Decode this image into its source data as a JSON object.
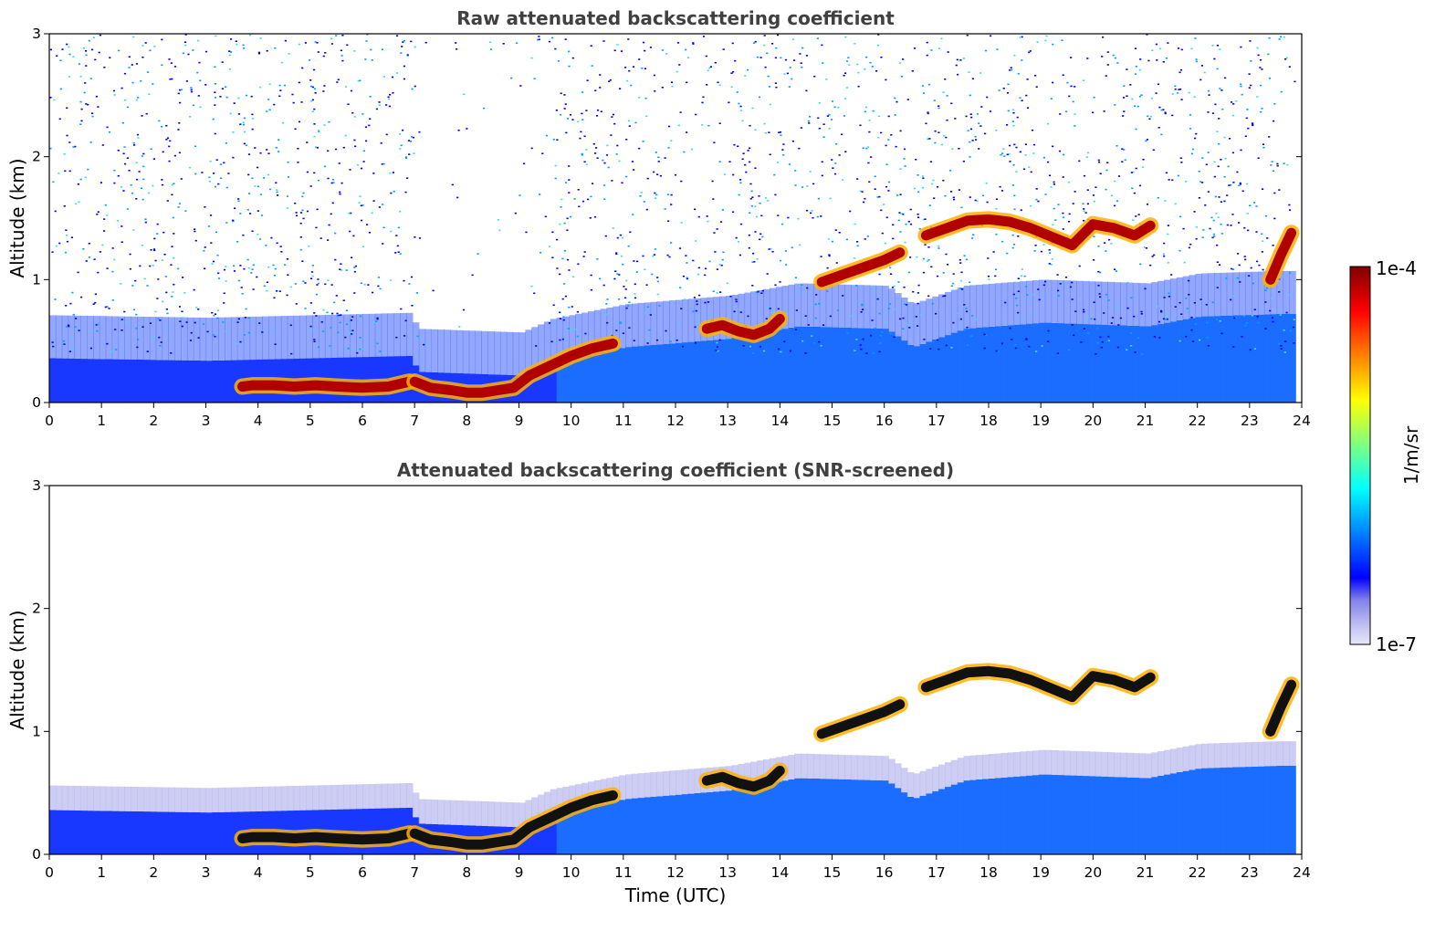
{
  "chart_data": [
    {
      "type": "heatmap",
      "title": "Raw attenuated backscattering coefficient",
      "xlabel": "",
      "ylabel": "Altitude (km)",
      "xlim": [
        0,
        24
      ],
      "ylim": [
        0,
        3
      ],
      "xticks": [
        0,
        1,
        2,
        3,
        4,
        5,
        6,
        7,
        8,
        9,
        10,
        11,
        12,
        13,
        14,
        15,
        16,
        17,
        18,
        19,
        20,
        21,
        22,
        23,
        24
      ],
      "yticks": [
        0,
        1,
        2,
        3
      ],
      "screened": false,
      "noise_level_per_hour": [
        [
          0,
          0.36
        ],
        [
          3,
          0.34
        ],
        [
          6.9,
          0.38
        ],
        [
          7,
          0.25
        ],
        [
          9,
          0.22
        ],
        [
          9.6,
          0.33
        ],
        [
          11,
          0.45
        ],
        [
          13,
          0.52
        ],
        [
          14.3,
          0.62
        ],
        [
          16,
          0.6
        ],
        [
          16.5,
          0.45
        ],
        [
          17.5,
          0.6
        ],
        [
          19,
          0.65
        ],
        [
          21,
          0.62
        ],
        [
          22,
          0.7
        ],
        [
          23.5,
          0.72
        ],
        [
          23.85,
          0.72
        ]
      ],
      "cloud_layer": [
        {
          "time": [
            3.7,
            3.9,
            4.3,
            4.7,
            5.1,
            5.5,
            6,
            6.5,
            6.9
          ],
          "altitude": [
            0.13,
            0.14,
            0.14,
            0.13,
            0.14,
            0.13,
            0.12,
            0.13,
            0.17
          ]
        },
        {
          "time": [
            7.0,
            7.3,
            7.7,
            8.0,
            8.3,
            8.6,
            8.9,
            9.2,
            9.6,
            10.0,
            10.4,
            10.8
          ],
          "altitude": [
            0.17,
            0.12,
            0.1,
            0.08,
            0.08,
            0.1,
            0.12,
            0.22,
            0.3,
            0.38,
            0.44,
            0.48
          ]
        },
        {
          "time": [
            12.6,
            12.9,
            13.2,
            13.5,
            13.8,
            14.0
          ],
          "altitude": [
            0.6,
            0.63,
            0.58,
            0.55,
            0.6,
            0.68
          ]
        },
        {
          "time": [
            14.8,
            15.2,
            15.6,
            16.0,
            16.3
          ],
          "altitude": [
            0.98,
            1.04,
            1.1,
            1.16,
            1.22
          ]
        },
        {
          "time": [
            16.8,
            17.2,
            17.6,
            18.0,
            18.4,
            18.8,
            19.2,
            19.6,
            20.0,
            20.4,
            20.8,
            21.1
          ],
          "altitude": [
            1.36,
            1.42,
            1.48,
            1.49,
            1.47,
            1.42,
            1.35,
            1.28,
            1.45,
            1.42,
            1.36,
            1.44
          ]
        },
        {
          "time": [
            23.4,
            23.6,
            23.8
          ],
          "altitude": [
            1.0,
            1.2,
            1.38
          ]
        }
      ]
    },
    {
      "type": "heatmap",
      "title": "Attenuated backscattering coefficient (SNR-screened)",
      "xlabel": "Time (UTC)",
      "ylabel": "Altitude (km)",
      "xlim": [
        0,
        24
      ],
      "ylim": [
        0,
        3
      ],
      "xticks": [
        0,
        1,
        2,
        3,
        4,
        5,
        6,
        7,
        8,
        9,
        10,
        11,
        12,
        13,
        14,
        15,
        16,
        17,
        18,
        19,
        20,
        21,
        22,
        23,
        24
      ],
      "yticks": [
        0,
        1,
        2,
        3
      ],
      "screened": true,
      "noise_level_per_hour": [
        [
          0,
          0.36
        ],
        [
          3,
          0.34
        ],
        [
          6.9,
          0.38
        ],
        [
          7,
          0.25
        ],
        [
          9,
          0.22
        ],
        [
          9.6,
          0.33
        ],
        [
          11,
          0.45
        ],
        [
          13,
          0.52
        ],
        [
          14.3,
          0.62
        ],
        [
          16,
          0.6
        ],
        [
          16.5,
          0.45
        ],
        [
          17.5,
          0.6
        ],
        [
          19,
          0.65
        ],
        [
          21,
          0.62
        ],
        [
          22,
          0.7
        ],
        [
          23.5,
          0.72
        ],
        [
          23.85,
          0.72
        ]
      ],
      "cloud_layer": [
        {
          "time": [
            3.7,
            3.9,
            4.3,
            4.7,
            5.1,
            5.5,
            6,
            6.5,
            6.9
          ],
          "altitude": [
            0.13,
            0.14,
            0.14,
            0.13,
            0.14,
            0.13,
            0.12,
            0.13,
            0.17
          ]
        },
        {
          "time": [
            7.0,
            7.3,
            7.7,
            8.0,
            8.3,
            8.6,
            8.9,
            9.2,
            9.6,
            10.0,
            10.4,
            10.8
          ],
          "altitude": [
            0.17,
            0.12,
            0.1,
            0.08,
            0.08,
            0.1,
            0.12,
            0.22,
            0.3,
            0.38,
            0.44,
            0.48
          ]
        },
        {
          "time": [
            12.6,
            12.9,
            13.2,
            13.5,
            13.8,
            14.0
          ],
          "altitude": [
            0.6,
            0.63,
            0.58,
            0.55,
            0.6,
            0.68
          ]
        },
        {
          "time": [
            14.8,
            15.2,
            15.6,
            16.0,
            16.3
          ],
          "altitude": [
            0.98,
            1.04,
            1.1,
            1.16,
            1.22
          ]
        },
        {
          "time": [
            16.8,
            17.2,
            17.6,
            18.0,
            18.4,
            18.8,
            19.2,
            19.6,
            20.0,
            20.4,
            20.8,
            21.1
          ],
          "altitude": [
            1.36,
            1.42,
            1.48,
            1.49,
            1.47,
            1.42,
            1.35,
            1.28,
            1.45,
            1.42,
            1.36,
            1.44
          ]
        },
        {
          "time": [
            23.4,
            23.6,
            23.8
          ],
          "altitude": [
            1.0,
            1.2,
            1.38
          ]
        }
      ]
    }
  ],
  "colorbar": {
    "label": "1/m/sr",
    "max_label": "1e-4",
    "min_label": "1e-7",
    "colormap": "jet",
    "colors": [
      "#e8e8fb",
      "#b8b8ef",
      "#8080ea",
      "#0000ff",
      "#0040ff",
      "#0080ff",
      "#00c0ff",
      "#00ffff",
      "#40ffc0",
      "#80ff80",
      "#c0ff40",
      "#ffff00",
      "#ffc000",
      "#ff8000",
      "#ff4000",
      "#ff0000",
      "#c00000",
      "#800000"
    ]
  }
}
